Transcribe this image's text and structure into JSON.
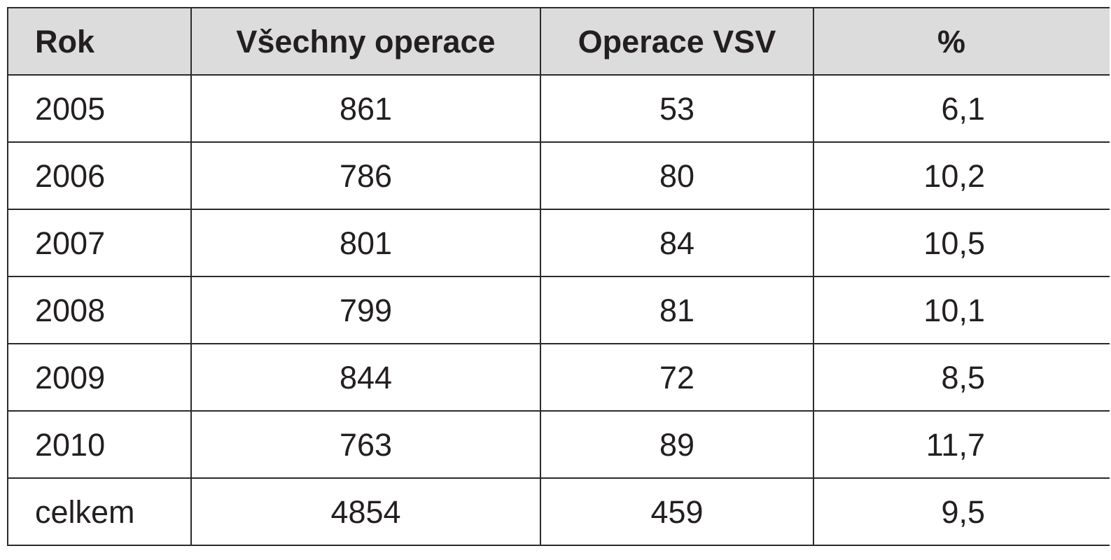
{
  "table": {
    "headers": [
      "Rok",
      "Všechny operace",
      "Operace VSV",
      "%"
    ],
    "rows": [
      [
        "2005",
        "861",
        "53",
        "6,1"
      ],
      [
        "2006",
        "786",
        "80",
        "10,2"
      ],
      [
        "2007",
        "801",
        "84",
        "10,5"
      ],
      [
        "2008",
        "799",
        "81",
        "10,1"
      ],
      [
        "2009",
        "844",
        "72",
        "8,5"
      ],
      [
        "2010",
        "763",
        "89",
        "11,7"
      ],
      [
        "celkem",
        "4854",
        "459",
        "9,5"
      ]
    ]
  },
  "colors": {
    "header_background": "#dcdcdc",
    "border": "#2b2b2b",
    "text": "#231f20"
  }
}
